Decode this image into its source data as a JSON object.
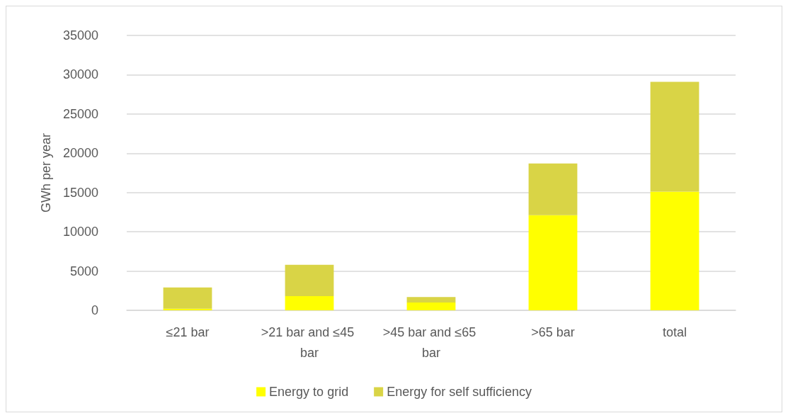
{
  "chart_data": {
    "type": "bar",
    "stacked": true,
    "ylabel": "GWh per year",
    "categories": [
      "≤21 bar",
      ">21 bar and ≤45 bar",
      ">45 bar and ≤65 bar",
      ">65 bar",
      "total"
    ],
    "series": [
      {
        "name": "Energy to grid",
        "color": "#ffff00",
        "values": [
          200,
          1800,
          1000,
          12100,
          15100
        ]
      },
      {
        "name": "Energy for self sufficiency",
        "color": "#d9d446",
        "values": [
          2700,
          4000,
          700,
          6600,
          14000
        ]
      }
    ],
    "ylim": [
      0,
      35000
    ],
    "yticks": [
      0,
      5000,
      10000,
      15000,
      20000,
      25000,
      30000,
      35000
    ],
    "grid": "y",
    "legend": "bottom"
  }
}
